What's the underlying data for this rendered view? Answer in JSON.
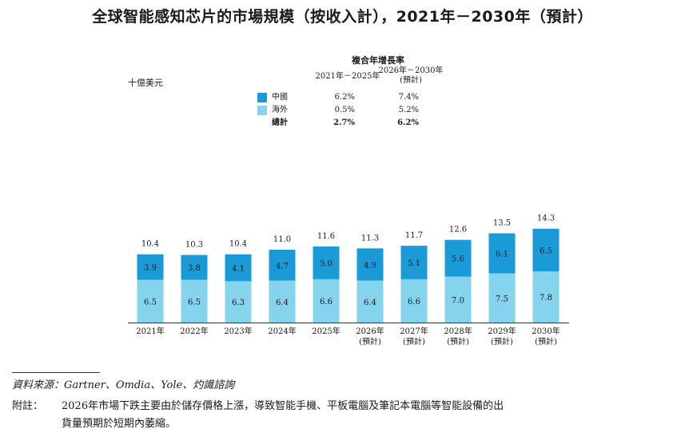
{
  "title": "全球智能感知芯片的市場規模（按收入計），2021年－2030年（預計）",
  "unit_label": "十億美元",
  "cagr": {
    "title": "複合年增長率",
    "period1": "2021年－2025年",
    "period2_line1": "2026年－2030年",
    "period2_line2": "(預計)",
    "rows": [
      {
        "label": "中國",
        "v1": "6.2%",
        "v2": "7.4%",
        "color": "#1a9bd7"
      },
      {
        "label": "海外",
        "v1": "0.5%",
        "v2": "5.2%",
        "color": "#86d3ee"
      },
      {
        "label": "總計",
        "v1": "2.7%",
        "v2": "6.2%",
        "color": ""
      }
    ]
  },
  "chart_data": {
    "type": "bar",
    "stacked": true,
    "categories": [
      "2021年",
      "2022年",
      "2023年",
      "2024年",
      "2025年",
      "2026年",
      "2027年",
      "2028年",
      "2029年",
      "2030年"
    ],
    "category_sublabels": [
      "",
      "",
      "",
      "",
      "",
      "(預計)",
      "(預計)",
      "(預計)",
      "(預計)",
      "(預計)"
    ],
    "series": [
      {
        "name": "海外",
        "color": "#86d3ee",
        "values": [
          6.5,
          6.5,
          6.3,
          6.4,
          6.6,
          6.4,
          6.6,
          7.0,
          7.5,
          7.8
        ],
        "labels": [
          "6.5",
          "6.5",
          "6.3",
          "6.4",
          "6.6",
          "6.4",
          "6.6",
          "7.0",
          "7.5",
          "7.8"
        ]
      },
      {
        "name": "中國",
        "color": "#1a9bd7",
        "values": [
          3.9,
          3.8,
          4.1,
          4.7,
          5.0,
          4.9,
          5.1,
          5.6,
          6.1,
          6.5
        ],
        "labels": [
          "3.9",
          "3.8",
          "4.1",
          "4.7",
          "5.0",
          "4.9",
          "5.1",
          "5.6",
          "6.1",
          "6.5"
        ]
      }
    ],
    "totals": [
      10.4,
      10.3,
      10.4,
      11.0,
      11.6,
      11.3,
      11.7,
      12.6,
      13.5,
      14.3
    ],
    "total_labels": [
      "10.4",
      "10.3",
      "10.4",
      "11.0",
      "11.6",
      "11.3",
      "11.7",
      "12.6",
      "13.5",
      "14.3"
    ],
    "grid": false
  },
  "source": "資料來源：Gartner、Omdia、Yole、灼識諮詢",
  "note_label": "附註：",
  "note_line1": "2026年市場下跌主要由於儲存價格上漲，導致智能手機、平板電腦及筆記本電腦等智能設備的出",
  "note_line2": "貨量預期於短期內萎縮。"
}
